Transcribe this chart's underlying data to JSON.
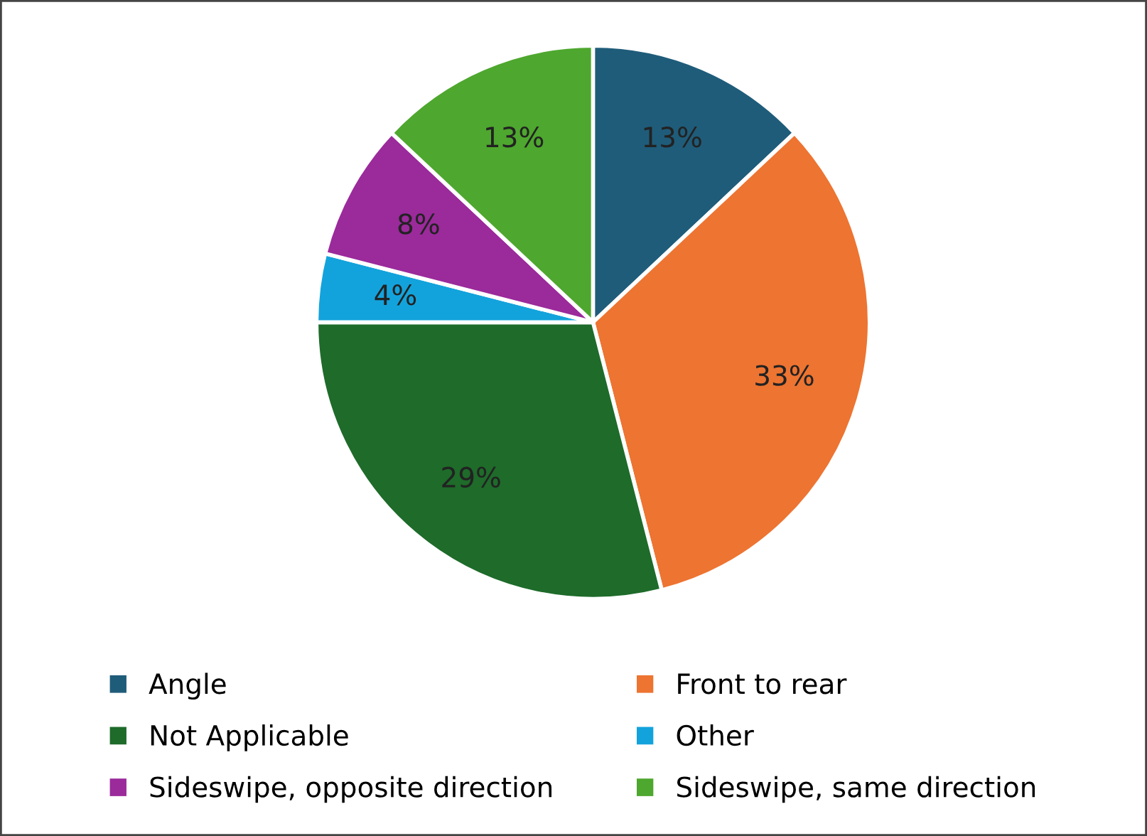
{
  "chart_data": {
    "type": "pie",
    "categories": [
      "Angle",
      "Front to rear",
      "Not Applicable",
      "Other",
      "Sideswipe, opposite direction",
      "Sideswipe, same direction"
    ],
    "values": [
      13,
      33,
      29,
      4,
      8,
      13
    ],
    "value_labels": [
      "13%",
      "33%",
      "29%",
      "4%",
      "8%",
      "13%"
    ],
    "colors": [
      "#1f5c7a",
      "#ed7431",
      "#1e6b2a",
      "#13a3dc",
      "#9b2a9b",
      "#4ea72e"
    ],
    "legend": "bottom"
  }
}
